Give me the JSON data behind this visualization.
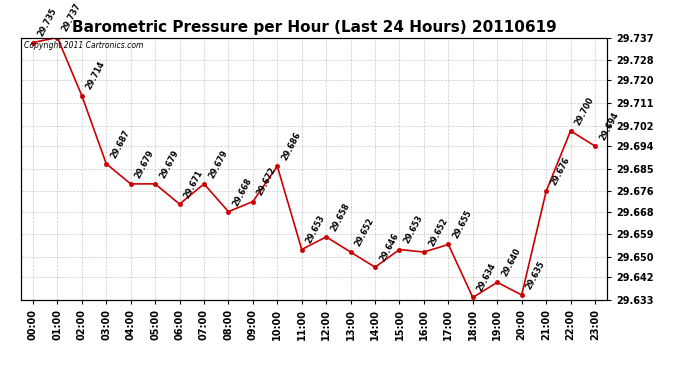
{
  "title": "Barometric Pressure per Hour (Last 24 Hours) 20110619",
  "copyright": "Copyright 2011 Cartronics.com",
  "hours": [
    "00:00",
    "01:00",
    "02:00",
    "03:00",
    "04:00",
    "05:00",
    "06:00",
    "07:00",
    "08:00",
    "09:00",
    "10:00",
    "11:00",
    "12:00",
    "13:00",
    "14:00",
    "15:00",
    "16:00",
    "17:00",
    "18:00",
    "19:00",
    "20:00",
    "21:00",
    "22:00",
    "23:00"
  ],
  "values": [
    29.735,
    29.737,
    29.714,
    29.687,
    29.679,
    29.679,
    29.671,
    29.679,
    29.668,
    29.672,
    29.686,
    29.653,
    29.658,
    29.652,
    29.646,
    29.653,
    29.652,
    29.655,
    29.634,
    29.64,
    29.635,
    29.676,
    29.7,
    29.694
  ],
  "ylim_min": 29.633,
  "ylim_max": 29.737,
  "yticks": [
    29.633,
    29.642,
    29.65,
    29.659,
    29.668,
    29.676,
    29.685,
    29.694,
    29.702,
    29.711,
    29.72,
    29.728,
    29.737
  ],
  "line_color": "#cc0000",
  "marker_color": "#cc0000",
  "bg_color": "#ffffff",
  "grid_color": "#bbbbbb",
  "title_fontsize": 11,
  "tick_fontsize": 7,
  "label_fontsize": 6.5
}
